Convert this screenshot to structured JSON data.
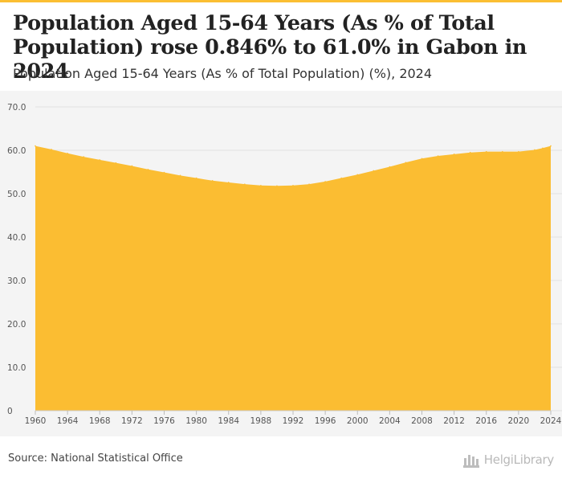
{
  "header": {
    "title": "Population Aged 15-64 Years (As % of Total Population) rose 0.846% to 61.0% in Gabon in 2024",
    "subtitle": "Population Aged 15-64 Years (As % of Total Population) (%), 2024"
  },
  "footer": {
    "source": "Source: National Statistical Office",
    "logo_text": "HelgiLibrary"
  },
  "colors": {
    "accent": "#fbbf33",
    "area_fill": "#fbbd32",
    "grid": "#e2e2e2",
    "background": "#f4f4f4"
  },
  "icons": {
    "logo": "library-building-icon"
  },
  "chart_data": {
    "type": "area",
    "title": "Population Aged 15-64 Years (As % of Total Population) (%), 2024",
    "xlabel": "",
    "ylabel": "",
    "xlim": [
      1960,
      2024
    ],
    "ylim": [
      0,
      70
    ],
    "grid": true,
    "legend": "none",
    "y_ticks": [
      "0",
      "10.0",
      "20.0",
      "30.0",
      "40.0",
      "50.0",
      "60.0",
      "70.0"
    ],
    "x_ticks": [
      "1960",
      "1964",
      "1968",
      "1972",
      "1976",
      "1980",
      "1984",
      "1988",
      "1992",
      "1996",
      "2000",
      "2004",
      "2008",
      "2012",
      "2016",
      "2020",
      "2024"
    ],
    "x": [
      1960,
      1962,
      1964,
      1966,
      1968,
      1970,
      1972,
      1974,
      1976,
      1978,
      1980,
      1982,
      1984,
      1986,
      1988,
      1990,
      1992,
      1994,
      1996,
      1998,
      2000,
      2002,
      2004,
      2006,
      2008,
      2010,
      2012,
      2014,
      2016,
      2018,
      2020,
      2022,
      2023,
      2024
    ],
    "series": [
      {
        "values": [
          61.0,
          60.2,
          59.3,
          58.5,
          57.8,
          57.1,
          56.4,
          55.6,
          54.9,
          54.2,
          53.6,
          53.0,
          52.6,
          52.2,
          51.9,
          51.8,
          51.9,
          52.2,
          52.8,
          53.6,
          54.4,
          55.3,
          56.2,
          57.2,
          58.1,
          58.7,
          59.1,
          59.5,
          59.7,
          59.7,
          59.7,
          60.1,
          60.5,
          61.0
        ]
      }
    ]
  }
}
